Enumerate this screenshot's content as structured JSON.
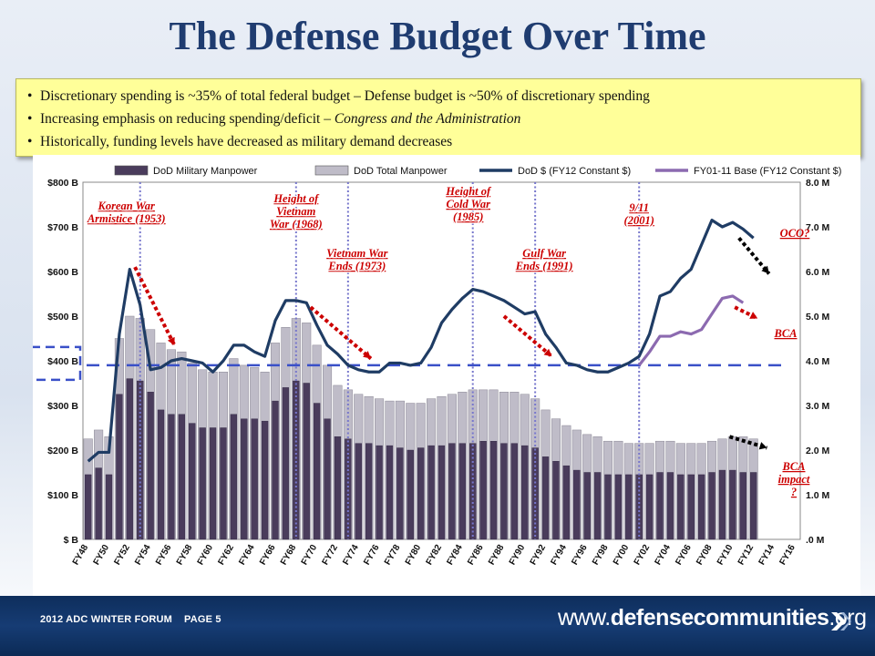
{
  "slide": {
    "title": "The Defense Budget Over Time",
    "bullets": [
      {
        "text": "Discretionary spending is ~35% of total federal budget – Defense budget is ~50% of discretionary spending"
      },
      {
        "text": "Increasing emphasis on reducing spending/deficit – ",
        "italic": "Congress and the Administration"
      },
      {
        "text": "Historically, funding levels have decreased as military demand decreases"
      }
    ],
    "footer_left": "2012 ADC WINTER FORUM    PAGE 5",
    "footer_logo_pre": "www.",
    "footer_logo_bold": "defensecommunities",
    "footer_logo_post": ".org"
  },
  "colors": {
    "title": "#1f3c70",
    "military_bar": "#4a3c5c",
    "total_bar": "#bfbcc8",
    "dod_line": "#1f3c64",
    "base_line": "#8c6ab0",
    "annotation": "#cc0000",
    "guide_line": "#7777cc",
    "dashed_ref": "#3a50c8"
  },
  "chart_data": {
    "type": "bar",
    "legend": [
      "DoD Military Manpower",
      "DoD Total Manpower",
      "DoD $ (FY12 Constant $)",
      "FY01-11 Base (FY12 Constant $)"
    ],
    "x_tick_labels": [
      "FY48",
      "FY50",
      "FY52",
      "FY54",
      "FY56",
      "FY58",
      "FY60",
      "FY62",
      "FY64",
      "FY66",
      "FY68",
      "FY70",
      "FY72",
      "FY74",
      "FY76",
      "FY78",
      "FY80",
      "FY82",
      "FY84",
      "FY86",
      "FY88",
      "FY90",
      "FY92",
      "FY94",
      "FY96",
      "FY98",
      "FY00",
      "FY02",
      "FY04",
      "FY06",
      "FY08",
      "FY10",
      "FY12",
      "FY14",
      "FY16"
    ],
    "x_range": [
      1948,
      2016
    ],
    "y_left_ticks": [
      "$ B",
      "$100 B",
      "$200 B",
      "$300 B",
      "$400 B",
      "$500 B",
      "$600 B",
      "$700 B",
      "$800 B"
    ],
    "y_left_range": [
      0,
      800
    ],
    "y_right_ticks": [
      ".0 M",
      "1.0 M",
      "2.0 M",
      "3.0 M",
      "4.0 M",
      "5.0 M",
      "6.0 M",
      "7.0 M",
      "8.0 M"
    ],
    "y_right_range": [
      0,
      8
    ],
    "years": [
      1948,
      1949,
      1950,
      1951,
      1952,
      1953,
      1954,
      1955,
      1956,
      1957,
      1958,
      1959,
      1960,
      1961,
      1962,
      1963,
      1964,
      1965,
      1966,
      1967,
      1968,
      1969,
      1970,
      1971,
      1972,
      1973,
      1974,
      1975,
      1976,
      1977,
      1978,
      1979,
      1980,
      1981,
      1982,
      1983,
      1984,
      1985,
      1986,
      1987,
      1988,
      1989,
      1990,
      1991,
      1992,
      1993,
      1994,
      1995,
      1996,
      1997,
      1998,
      1999,
      2000,
      2001,
      2002,
      2003,
      2004,
      2005,
      2006,
      2007,
      2008,
      2009,
      2010,
      2011,
      2012
    ],
    "series": [
      {
        "name": "DoD Military Manpower",
        "unit": "M",
        "values": [
          1.45,
          1.6,
          1.45,
          3.25,
          3.6,
          3.55,
          3.3,
          2.9,
          2.8,
          2.8,
          2.6,
          2.5,
          2.5,
          2.5,
          2.8,
          2.7,
          2.7,
          2.65,
          3.1,
          3.4,
          3.55,
          3.5,
          3.05,
          2.7,
          2.3,
          2.25,
          2.15,
          2.15,
          2.1,
          2.1,
          2.05,
          2.0,
          2.05,
          2.1,
          2.1,
          2.15,
          2.15,
          2.15,
          2.2,
          2.2,
          2.15,
          2.15,
          2.1,
          2.05,
          1.85,
          1.75,
          1.65,
          1.55,
          1.5,
          1.5,
          1.45,
          1.45,
          1.45,
          1.45,
          1.45,
          1.5,
          1.5,
          1.45,
          1.45,
          1.45,
          1.5,
          1.55,
          1.55,
          1.5,
          1.5
        ]
      },
      {
        "name": "DoD Total Manpower",
        "unit": "M",
        "values": [
          2.25,
          2.45,
          2.3,
          4.5,
          5.0,
          4.95,
          4.7,
          4.4,
          4.25,
          4.2,
          3.95,
          3.8,
          3.75,
          3.75,
          4.05,
          3.9,
          3.85,
          3.75,
          4.4,
          4.75,
          4.95,
          4.85,
          4.35,
          3.9,
          3.45,
          3.35,
          3.25,
          3.2,
          3.15,
          3.1,
          3.1,
          3.05,
          3.05,
          3.15,
          3.2,
          3.25,
          3.3,
          3.35,
          3.35,
          3.35,
          3.3,
          3.3,
          3.25,
          3.15,
          2.9,
          2.7,
          2.55,
          2.45,
          2.35,
          2.3,
          2.2,
          2.2,
          2.15,
          2.15,
          2.15,
          2.2,
          2.2,
          2.15,
          2.15,
          2.15,
          2.2,
          2.25,
          2.3,
          2.3,
          2.25
        ]
      },
      {
        "name": "DoD $ (FY12 Constant $)",
        "unit": "$B",
        "values": [
          175,
          195,
          195,
          460,
          605,
          525,
          380,
          385,
          400,
          405,
          400,
          395,
          375,
          400,
          435,
          435,
          420,
          410,
          490,
          535,
          535,
          530,
          480,
          435,
          415,
          390,
          380,
          375,
          375,
          395,
          395,
          390,
          395,
          430,
          485,
          515,
          540,
          560,
          555,
          545,
          535,
          520,
          505,
          510,
          460,
          430,
          395,
          390,
          380,
          375,
          375,
          385,
          395,
          410,
          460,
          545,
          555,
          585,
          605,
          660,
          715,
          700,
          710,
          695,
          675
        ]
      },
      {
        "name": "FY01-11 Base (FY12 Constant $)",
        "unit": "$B",
        "years": [
          2001,
          2002,
          2003,
          2004,
          2005,
          2006,
          2007,
          2008,
          2009,
          2010,
          2011
        ],
        "values": [
          390,
          420,
          455,
          455,
          465,
          460,
          470,
          505,
          540,
          545,
          530
        ]
      }
    ],
    "reference_level": 390,
    "event_labels": [
      {
        "lines": [
          "Korean War",
          "Armistice (1953)"
        ],
        "year": 1953
      },
      {
        "lines": [
          "Height of",
          "Vietnam",
          "War (1968)"
        ],
        "year": 1968
      },
      {
        "lines": [
          "Vietnam War",
          "Ends (1973)"
        ],
        "year": 1973
      },
      {
        "lines": [
          "Height of",
          "Cold War",
          "(1985)"
        ],
        "year": 1985
      },
      {
        "lines": [
          "Gulf War",
          "Ends (1991)"
        ],
        "year": 1991
      },
      {
        "lines": [
          "9/11",
          "(2001)"
        ],
        "year": 2001
      }
    ],
    "callouts": [
      {
        "lines": [
          "OCO?"
        ]
      },
      {
        "lines": [
          "BCA"
        ]
      },
      {
        "lines": [
          "BCA",
          "impact",
          "?"
        ]
      }
    ]
  }
}
